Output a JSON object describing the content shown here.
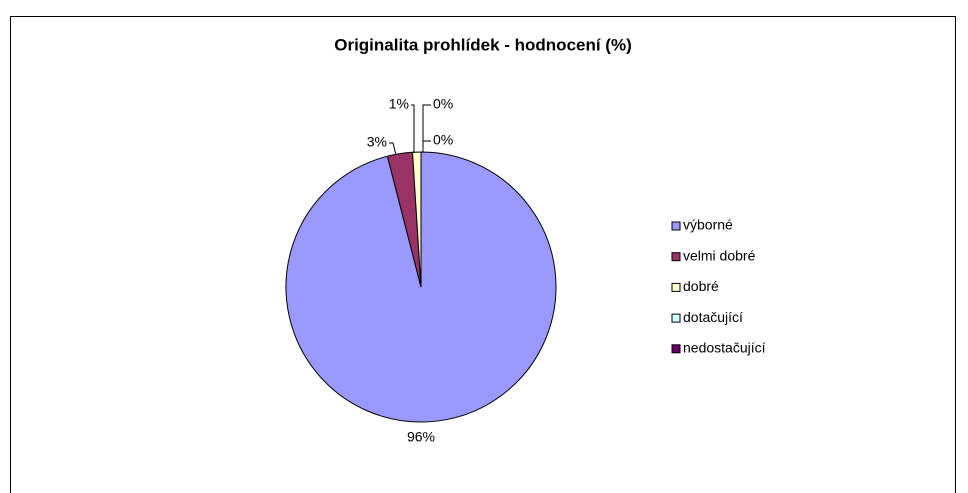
{
  "chart_data": {
    "type": "pie",
    "title": "Originalita prohlídek - hodnocení (%)",
    "categories": [
      "výborné",
      "velmi dobré",
      "dobré",
      "dotačující",
      "nedostačující"
    ],
    "values": [
      96,
      3,
      1,
      0,
      0
    ],
    "value_labels": [
      "96%",
      "3%",
      "1%",
      "0%",
      "0%"
    ],
    "colors": [
      "#9999ff",
      "#993366",
      "#ffffcc",
      "#ccffff",
      "#660066"
    ],
    "legend": "right"
  }
}
